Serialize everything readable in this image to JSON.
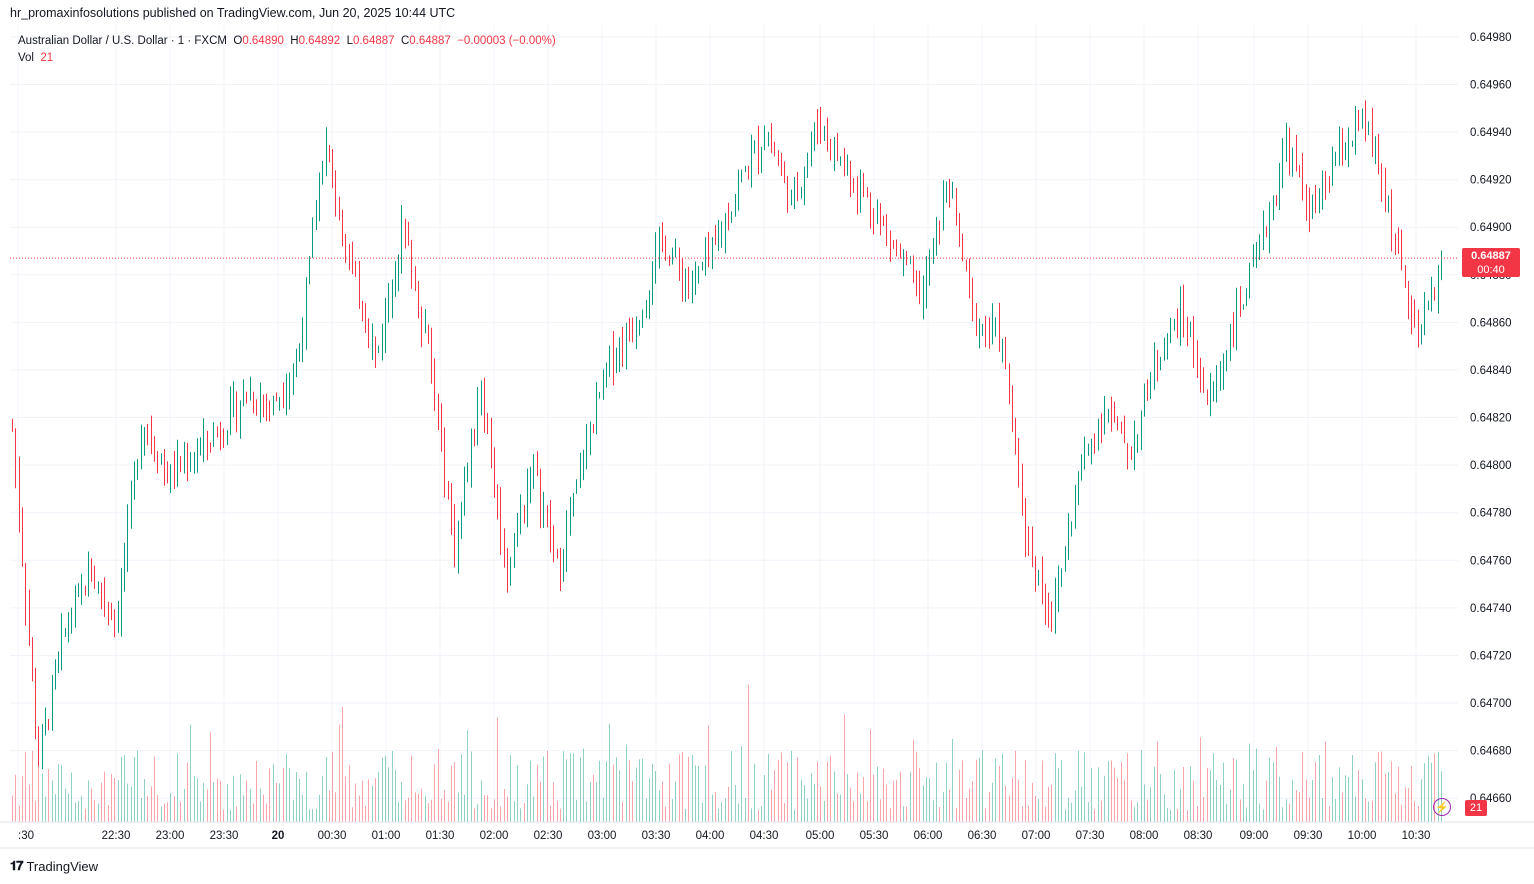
{
  "header": {
    "published_line": "hr_promaxinfosolutions published on TradingView.com, Jun 20, 2025 10:44 UTC"
  },
  "legend": {
    "symbol": "Australian Dollar / U.S. Dollar · 1 · FXCM",
    "o_label": "O",
    "o_value": "0.64890",
    "h_label": "H",
    "h_value": "0.64892",
    "l_label": "L",
    "l_value": "0.64887",
    "c_label": "C",
    "c_value": "0.64887",
    "change": "−0.00003 (−0.00%)",
    "vol_label": "Vol",
    "vol_value": "21"
  },
  "price_tag": {
    "price": "0.64887",
    "countdown": "00:40"
  },
  "volume_tag": "21",
  "footer": {
    "brand": "TradingView"
  },
  "colors": {
    "up": "#089981",
    "down": "#f23645",
    "grid": "#f0f3fa",
    "text": "#131722"
  },
  "chart_data": {
    "type": "candlestick",
    "y_ticks": [
      "0.64980",
      "0.64960",
      "0.64940",
      "0.64920",
      "0.64900",
      "0.64880",
      "0.64860",
      "0.64840",
      "0.64820",
      "0.64800",
      "0.64780",
      "0.64760",
      "0.64740",
      "0.64720",
      "0.64700",
      "0.64680",
      "0.64660"
    ],
    "y_range": [
      0.6465,
      0.64985
    ],
    "x_ticks": [
      ":30",
      "22:30",
      "23:00",
      "23:30",
      "20",
      "00:30",
      "01:00",
      "01:30",
      "02:00",
      "02:30",
      "03:00",
      "03:30",
      "04:00",
      "04:30",
      "05:00",
      "05:30",
      "06:00",
      "06:30",
      "07:00",
      "07:30",
      "08:00",
      "08:30",
      "09:00",
      "09:30",
      "10:00",
      "10:30"
    ],
    "last_price": 0.64887,
    "close_path": [
      [
        ":30",
        0.64815
      ],
      [
        "+",
        0.64675
      ],
      [
        "+",
        0.6473
      ],
      [
        "+",
        0.64755
      ],
      [
        "+",
        0.64735
      ],
      [
        "+",
        0.6482
      ],
      [
        "22:30",
        0.64795
      ],
      [
        "+",
        0.64805
      ],
      [
        "23:00",
        0.64815
      ],
      [
        "+",
        0.6483
      ],
      [
        "23:30",
        0.64825
      ],
      [
        "+",
        0.64845
      ],
      [
        "20",
        0.64935
      ],
      [
        "+",
        0.64885
      ],
      [
        "00:30",
        0.64845
      ],
      [
        "+",
        0.649
      ],
      [
        "01:00",
        0.6485
      ],
      [
        "+",
        0.64765
      ],
      [
        "01:30",
        0.64835
      ],
      [
        "+",
        0.64755
      ],
      [
        "02:00",
        0.648
      ],
      [
        "+",
        0.64755
      ],
      [
        "02:30",
        0.64805
      ],
      [
        "+",
        0.64845
      ],
      [
        "03:00",
        0.6486
      ],
      [
        "+",
        0.64895
      ],
      [
        "03:30",
        0.64875
      ],
      [
        "+",
        0.6489
      ],
      [
        "04:00",
        0.6492
      ],
      [
        "+",
        0.6494
      ],
      [
        "04:30",
        0.6491
      ],
      [
        "+",
        0.64945
      ],
      [
        "05:00",
        0.64925
      ],
      [
        "+",
        0.6491
      ],
      [
        "05:30",
        0.6489
      ],
      [
        "+",
        0.6487
      ],
      [
        "06:00",
        0.6492
      ],
      [
        "+",
        0.6486
      ],
      [
        "06:30",
        0.64855
      ],
      [
        "+",
        0.6477
      ],
      [
        "07:00",
        0.64735
      ],
      [
        "+",
        0.64795
      ],
      [
        "07:30",
        0.64825
      ],
      [
        "+",
        0.64805
      ],
      [
        "08:00",
        0.64845
      ],
      [
        "+",
        0.64865
      ],
      [
        "08:30",
        0.64825
      ],
      [
        "+",
        0.6486
      ],
      [
        "09:00",
        0.6489
      ],
      [
        "+",
        0.64935
      ],
      [
        "09:30",
        0.64905
      ],
      [
        "+",
        0.6493
      ],
      [
        "10:00",
        0.64945
      ],
      [
        "+",
        0.64905
      ],
      [
        "10:30",
        0.6485
      ],
      [
        "+",
        0.64887
      ]
    ]
  }
}
